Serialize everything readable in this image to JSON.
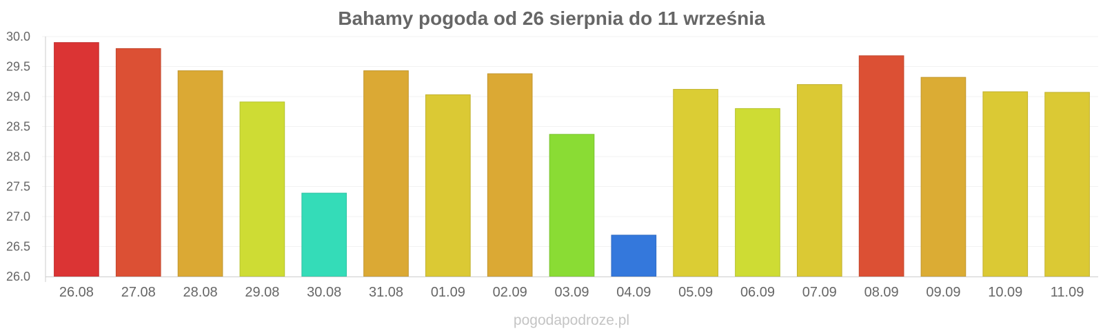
{
  "chart_data": {
    "type": "bar",
    "title": "Bahamy pogoda od 26 sierpnia do 11 września",
    "xlabel": "",
    "ylabel": "",
    "ylim": [
      26.0,
      30.0
    ],
    "yticks": [
      "26.0",
      "26.5",
      "27.0",
      "27.5",
      "28.0",
      "28.5",
      "29.0",
      "29.5",
      "30.0"
    ],
    "grid": true,
    "legend": "none",
    "categories": [
      "26.08",
      "27.08",
      "28.08",
      "29.08",
      "30.08",
      "31.08",
      "01.09",
      "02.09",
      "03.09",
      "04.09",
      "05.09",
      "06.09",
      "07.09",
      "08.09",
      "09.09",
      "10.09",
      "11.09"
    ],
    "values": [
      29.9,
      29.8,
      29.43,
      28.91,
      27.39,
      29.43,
      29.03,
      29.38,
      28.37,
      26.69,
      29.12,
      28.8,
      29.2,
      29.68,
      29.32,
      29.08,
      29.07
    ],
    "colors": [
      "#db3434",
      "#dc5034",
      "#dba934",
      "#cedc34",
      "#34dcb8",
      "#dba934",
      "#dbc934",
      "#dba934",
      "#8adc34",
      "#3478dc",
      "#dbcd34",
      "#ceDC34",
      "#dbc934",
      "#dc5034",
      "#dbac34",
      "#dbc934",
      "#dbc934"
    ]
  },
  "footer": {
    "credit": "pogodapodroze.pl"
  }
}
